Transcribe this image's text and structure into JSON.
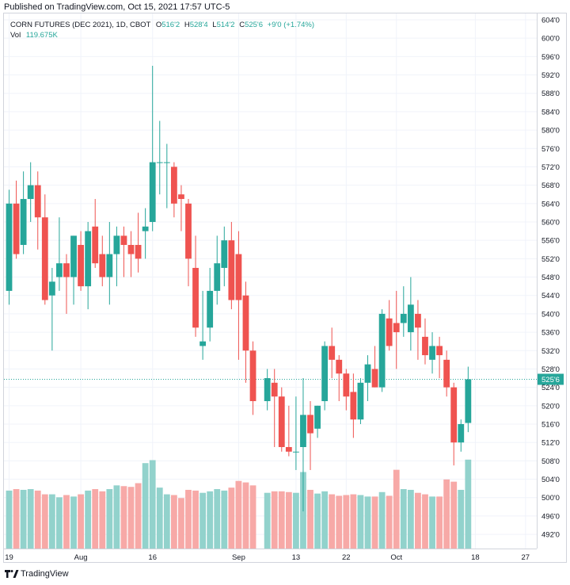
{
  "header": {
    "published": "Published on TradingView.com, Oct 15, 2021 17:57 UTC-5"
  },
  "legend": {
    "symbol": "CORN FUTURES (DEC 2021), 1D, CBOT",
    "o_label": "O",
    "o_val": "516'2",
    "h_label": "H",
    "h_val": "528'4",
    "l_label": "L",
    "l_val": "514'2",
    "c_label": "C",
    "c_val": "525'6",
    "change": "+9'0 (+1.74%)",
    "vol_label": "Vol",
    "vol_val": "119.675K"
  },
  "footer": {
    "brand": "TradingView"
  },
  "colors": {
    "up": "#26a69a",
    "down": "#ef5350",
    "up_vol": "#92d2cc",
    "down_vol": "#f7a9a7",
    "grid": "#f0f3fa",
    "last_price_bg": "#26a69a"
  },
  "chart_data": {
    "type": "candlestick",
    "title": "CORN FUTURES (DEC 2021), 1D, CBOT",
    "price_unit": "cents per bushel (1/8 ticks shown as ')",
    "y_ticks": [
      "492'0",
      "496'0",
      "500'0",
      "504'0",
      "508'0",
      "512'0",
      "516'0",
      "520'0",
      "524'0",
      "528'0",
      "532'0",
      "536'0",
      "540'0",
      "544'0",
      "548'0",
      "552'0",
      "556'0",
      "560'0",
      "564'0",
      "568'0",
      "572'0",
      "576'0",
      "580'0",
      "584'0",
      "588'0",
      "592'0",
      "596'0",
      "600'0",
      "604'0"
    ],
    "ylim": [
      488.0,
      606.0
    ],
    "x_ticks": [
      {
        "label": "19",
        "date": "2021-07-19"
      },
      {
        "label": "Aug",
        "date": "2021-08-02"
      },
      {
        "label": "16",
        "date": "2021-08-16"
      },
      {
        "label": "Sep",
        "date": "2021-09-01"
      },
      {
        "label": "13",
        "date": "2021-09-13"
      },
      {
        "label": "22",
        "date": "2021-09-22"
      },
      {
        "label": "Oct",
        "date": "2021-10-01"
      },
      {
        "label": "18",
        "date": "2021-10-18"
      },
      {
        "label": "27",
        "date": "2021-10-27"
      }
    ],
    "last_price": "525'6",
    "last_price_value": 525.75,
    "candles": [
      {
        "d": "2021-07-19",
        "o": 545,
        "h": 567,
        "l": 542,
        "c": 564,
        "v": 78
      },
      {
        "d": "2021-07-20",
        "o": 564,
        "h": 569,
        "l": 552,
        "c": 553,
        "v": 80
      },
      {
        "d": "2021-07-21",
        "o": 555,
        "h": 571,
        "l": 553,
        "c": 565,
        "v": 79
      },
      {
        "d": "2021-07-22",
        "o": 565,
        "h": 573,
        "l": 560,
        "c": 568,
        "v": 80
      },
      {
        "d": "2021-07-23",
        "o": 568,
        "h": 571,
        "l": 554,
        "c": 561,
        "v": 78
      },
      {
        "d": "2021-07-26",
        "o": 561,
        "h": 566,
        "l": 542,
        "c": 543,
        "v": 73
      },
      {
        "d": "2021-07-27",
        "o": 544,
        "h": 550,
        "l": 532,
        "c": 547,
        "v": 73
      },
      {
        "d": "2021-07-28",
        "o": 548,
        "h": 561,
        "l": 545,
        "c": 551,
        "v": 69
      },
      {
        "d": "2021-07-29",
        "o": 551,
        "h": 553,
        "l": 540,
        "c": 548,
        "v": 72
      },
      {
        "d": "2021-07-30",
        "o": 548,
        "h": 557,
        "l": 542,
        "c": 557,
        "v": 70
      },
      {
        "d": "2021-08-02",
        "o": 555,
        "h": 558,
        "l": 545,
        "c": 546,
        "v": 73
      },
      {
        "d": "2021-08-03",
        "o": 546,
        "h": 560,
        "l": 541,
        "c": 558,
        "v": 78
      },
      {
        "d": "2021-08-04",
        "o": 559,
        "h": 565,
        "l": 550,
        "c": 551,
        "v": 80
      },
      {
        "d": "2021-08-05",
        "o": 553,
        "h": 557,
        "l": 546,
        "c": 548,
        "v": 77
      },
      {
        "d": "2021-08-06",
        "o": 548,
        "h": 560,
        "l": 542,
        "c": 553,
        "v": 80
      },
      {
        "d": "2021-08-09",
        "o": 553,
        "h": 559,
        "l": 546,
        "c": 557,
        "v": 85
      },
      {
        "d": "2021-08-10",
        "o": 557,
        "h": 559,
        "l": 548,
        "c": 555,
        "v": 84
      },
      {
        "d": "2021-08-11",
        "o": 555,
        "h": 558,
        "l": 548,
        "c": 553,
        "v": 83
      },
      {
        "d": "2021-08-12",
        "o": 555,
        "h": 562,
        "l": 549,
        "c": 552,
        "v": 88
      },
      {
        "d": "2021-08-13",
        "o": 558,
        "h": 563,
        "l": 552,
        "c": 559,
        "v": 115
      },
      {
        "d": "2021-08-16",
        "o": 560,
        "h": 594,
        "l": 558,
        "c": 573,
        "v": 119
      },
      {
        "d": "2021-08-17",
        "o": 573,
        "h": 582,
        "l": 566,
        "c": 573,
        "v": 82
      },
      {
        "d": "2021-08-18",
        "o": 573,
        "h": 577,
        "l": 563,
        "c": 573,
        "v": 73
      },
      {
        "d": "2021-08-19",
        "o": 572,
        "h": 573,
        "l": 561,
        "c": 564,
        "v": 72
      },
      {
        "d": "2021-08-20",
        "o": 566,
        "h": 568,
        "l": 558,
        "c": 565,
        "v": 68
      },
      {
        "d": "2021-08-23",
        "o": 564,
        "h": 565,
        "l": 546,
        "c": 552,
        "v": 79
      },
      {
        "d": "2021-08-24",
        "o": 550,
        "h": 557,
        "l": 535,
        "c": 537,
        "v": 78
      },
      {
        "d": "2021-08-25",
        "o": 533,
        "h": 545,
        "l": 530,
        "c": 534,
        "v": 75
      },
      {
        "d": "2021-08-26",
        "o": 537,
        "h": 550,
        "l": 534,
        "c": 545,
        "v": 77
      },
      {
        "d": "2021-08-27",
        "o": 545,
        "h": 557,
        "l": 542,
        "c": 551,
        "v": 80
      },
      {
        "d": "2021-08-30",
        "o": 550,
        "h": 559,
        "l": 546,
        "c": 556,
        "v": 78
      },
      {
        "d": "2021-08-31",
        "o": 556,
        "h": 560,
        "l": 541,
        "c": 543,
        "v": 82
      },
      {
        "d": "2021-09-01",
        "o": 553,
        "h": 558,
        "l": 530,
        "c": 543,
        "v": 91
      },
      {
        "d": "2021-09-02",
        "o": 544,
        "h": 547,
        "l": 525,
        "c": 532,
        "v": 89
      },
      {
        "d": "2021-09-03",
        "o": 532,
        "h": 534,
        "l": 518,
        "c": 521,
        "v": 85
      },
      {
        "d": "2021-09-07",
        "o": 521,
        "h": 528,
        "l": 519,
        "c": 526,
        "v": 75
      },
      {
        "d": "2021-09-08",
        "o": 525,
        "h": 528,
        "l": 511,
        "c": 522,
        "v": 77
      },
      {
        "d": "2021-09-09",
        "o": 522,
        "h": 524,
        "l": 510,
        "c": 511,
        "v": 77
      },
      {
        "d": "2021-09-10",
        "o": 511,
        "h": 520,
        "l": 509,
        "c": 510,
        "v": 76
      },
      {
        "d": "2021-09-13",
        "o": 510,
        "h": 522,
        "l": 506,
        "c": 510,
        "v": 75
      },
      {
        "d": "2021-09-14",
        "o": 511,
        "h": 526,
        "l": 497,
        "c": 518,
        "v": 103
      },
      {
        "d": "2021-09-15",
        "o": 518,
        "h": 521,
        "l": 506,
        "c": 514,
        "v": 79
      },
      {
        "d": "2021-09-16",
        "o": 515,
        "h": 520,
        "l": 513,
        "c": 520,
        "v": 74
      },
      {
        "d": "2021-09-17",
        "o": 521,
        "h": 534,
        "l": 519,
        "c": 533,
        "v": 77
      },
      {
        "d": "2021-09-20",
        "o": 533,
        "h": 537,
        "l": 526,
        "c": 530,
        "v": 73
      },
      {
        "d": "2021-09-21",
        "o": 530,
        "h": 531,
        "l": 521,
        "c": 527,
        "v": 71
      },
      {
        "d": "2021-09-22",
        "o": 527,
        "h": 528,
        "l": 519,
        "c": 522,
        "v": 72
      },
      {
        "d": "2021-09-23",
        "o": 523,
        "h": 527,
        "l": 513,
        "c": 517,
        "v": 73
      },
      {
        "d": "2021-09-24",
        "o": 517,
        "h": 526,
        "l": 516,
        "c": 525,
        "v": 72
      },
      {
        "d": "2021-09-27",
        "o": 525,
        "h": 531,
        "l": 521,
        "c": 529,
        "v": 70
      },
      {
        "d": "2021-09-28",
        "o": 528,
        "h": 533,
        "l": 524,
        "c": 524,
        "v": 70
      },
      {
        "d": "2021-09-29",
        "o": 524,
        "h": 541,
        "l": 523,
        "c": 540,
        "v": 76
      },
      {
        "d": "2021-09-30",
        "o": 539,
        "h": 543,
        "l": 532,
        "c": 533,
        "v": 71
      },
      {
        "d": "2021-10-01",
        "o": 538,
        "h": 545,
        "l": 528,
        "c": 536,
        "v": 106
      },
      {
        "d": "2021-10-04",
        "o": 538,
        "h": 546,
        "l": 535,
        "c": 540,
        "v": 80
      },
      {
        "d": "2021-10-05",
        "o": 536,
        "h": 548,
        "l": 532,
        "c": 542,
        "v": 79
      },
      {
        "d": "2021-10-06",
        "o": 540,
        "h": 543,
        "l": 530,
        "c": 537,
        "v": 75
      },
      {
        "d": "2021-10-07",
        "o": 535,
        "h": 539,
        "l": 529,
        "c": 531,
        "v": 73
      },
      {
        "d": "2021-10-08",
        "o": 530,
        "h": 536,
        "l": 527,
        "c": 533,
        "v": 70
      },
      {
        "d": "2021-10-11",
        "o": 533,
        "h": 535,
        "l": 526,
        "c": 531,
        "v": 70
      },
      {
        "d": "2021-10-12",
        "o": 530,
        "h": 532,
        "l": 522,
        "c": 524,
        "v": 93
      },
      {
        "d": "2021-10-13",
        "o": 524,
        "h": 525,
        "l": 507,
        "c": 512,
        "v": 90
      },
      {
        "d": "2021-10-14",
        "o": 512,
        "h": 517,
        "l": 510,
        "c": 516,
        "v": 79
      },
      {
        "d": "2021-10-15",
        "o": 516.25,
        "h": 528.5,
        "l": 514.25,
        "c": 525.75,
        "v": 119.675
      }
    ]
  }
}
